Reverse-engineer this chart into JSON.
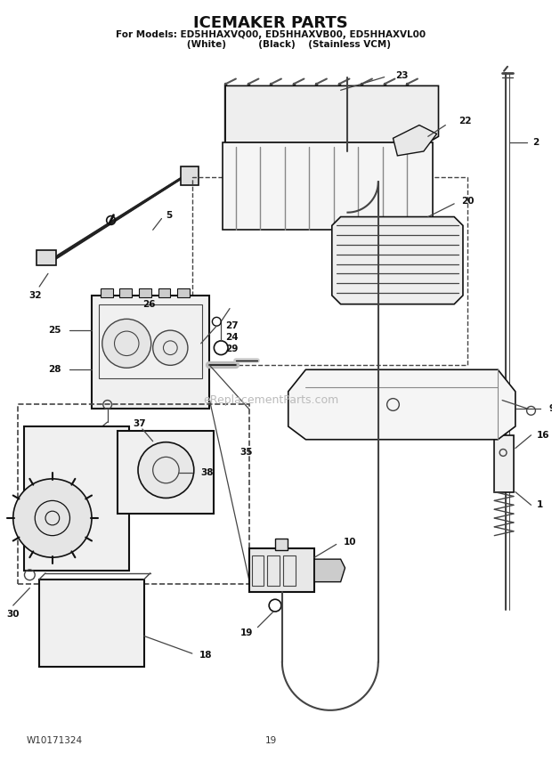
{
  "title_line1": "ICEMAKER PARTS",
  "title_line2": "For Models: ED5HHAXVQ00, ED5HHAXVB00, ED5HHAXVL00",
  "title_line3": "           (White)          (Black)    (Stainless VCM)",
  "footer_left": "W10171324",
  "footer_center": "19",
  "bg_color": "#ffffff",
  "watermark": "eReplacementParts.com",
  "gray": "#444444",
  "dark": "#111111",
  "light_gray": "#888888"
}
